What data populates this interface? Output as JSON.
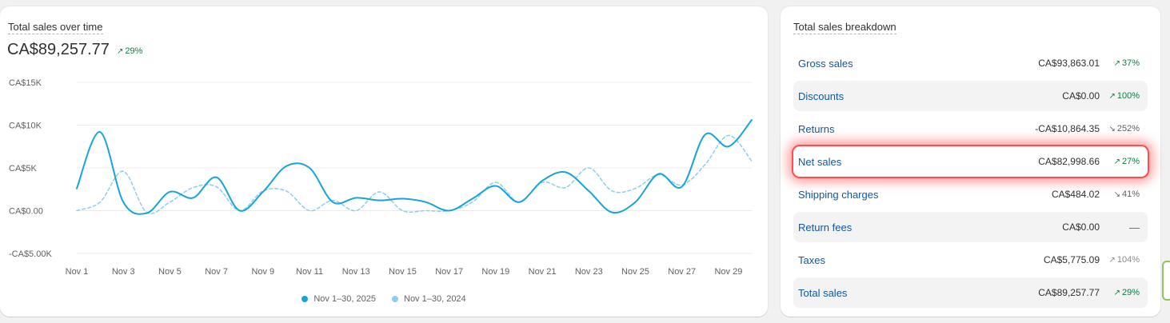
{
  "sales_over_time": {
    "title": "Total sales over time",
    "total_value": "CA$89,257.77",
    "total_delta": "29%",
    "legend": [
      {
        "label": "Nov 1–30, 2025",
        "color": "#18a3d9"
      },
      {
        "label": "Nov 1–30, 2024",
        "color": "#8fcdee"
      }
    ],
    "chart_data": {
      "type": "line",
      "x": [
        "Nov 1",
        "Nov 2",
        "Nov 3",
        "Nov 4",
        "Nov 5",
        "Nov 6",
        "Nov 7",
        "Nov 8",
        "Nov 9",
        "Nov 10",
        "Nov 11",
        "Nov 12",
        "Nov 13",
        "Nov 14",
        "Nov 15",
        "Nov 16",
        "Nov 17",
        "Nov 18",
        "Nov 19",
        "Nov 20",
        "Nov 21",
        "Nov 22",
        "Nov 23",
        "Nov 24",
        "Nov 25",
        "Nov 26",
        "Nov 27",
        "Nov 28",
        "Nov 29",
        "Nov 30"
      ],
      "tick_labels": [
        "Nov 1",
        "Nov 3",
        "Nov 5",
        "Nov 7",
        "Nov 9",
        "Nov 11",
        "Nov 13",
        "Nov 15",
        "Nov 17",
        "Nov 19",
        "Nov 21",
        "Nov 23",
        "Nov 25",
        "Nov 27",
        "Nov 29"
      ],
      "y_ticks": [
        "CA$15K",
        "CA$10K",
        "CA$5K",
        "CA$0.00",
        "-CA$5.00K"
      ],
      "ylim": [
        -5000,
        15000
      ],
      "series": [
        {
          "name": "Nov 1–30, 2025",
          "style": "solid",
          "color": "#18a3d9",
          "values": [
            2600,
            9200,
            1000,
            -300,
            2200,
            1500,
            3900,
            0,
            2200,
            5200,
            5000,
            1000,
            1500,
            1200,
            1400,
            1000,
            0,
            1400,
            2900,
            1000,
            3500,
            4500,
            2300,
            -200,
            1000,
            4300,
            2800,
            8900,
            7500,
            10600
          ]
        },
        {
          "name": "Nov 1–30, 2024",
          "style": "dashed",
          "color": "#8fcdee",
          "values": [
            0,
            1000,
            4600,
            -200,
            1000,
            2700,
            2800,
            0,
            2300,
            2300,
            0,
            1200,
            0,
            2200,
            0,
            0,
            0,
            1000,
            3300,
            1000,
            3300,
            2700,
            5000,
            2300,
            2600,
            4200,
            3000,
            5400,
            8800,
            5800
          ]
        }
      ]
    }
  },
  "breakdown": {
    "title": "Total sales breakdown",
    "rows": [
      {
        "label": "Gross sales",
        "value": "CA$93,863.01",
        "delta": "37%",
        "direction": "up",
        "delta_color": "#0c7d3f"
      },
      {
        "label": "Discounts",
        "value": "CA$0.00",
        "delta": "100%",
        "direction": "up",
        "delta_color": "#0c7d3f"
      },
      {
        "label": "Returns",
        "value": "-CA$10,864.35",
        "delta": "252%",
        "direction": "down",
        "delta_color": "#616161"
      },
      {
        "label": "Net sales",
        "value": "CA$82,998.66",
        "delta": "27%",
        "direction": "up",
        "delta_color": "#0c7d3f"
      },
      {
        "label": "Shipping charges",
        "value": "CA$484.02",
        "delta": "41%",
        "direction": "down",
        "delta_color": "#616161"
      },
      {
        "label": "Return fees",
        "value": "CA$0.00",
        "delta": "—",
        "direction": "none",
        "delta_color": "#616161"
      },
      {
        "label": "Taxes",
        "value": "CA$5,775.09",
        "delta": "104%",
        "direction": "up-muted",
        "delta_color": "#8a8a8a"
      },
      {
        "label": "Total sales",
        "value": "CA$89,257.77",
        "delta": "29%",
        "direction": "up",
        "delta_color": "#0c7d3f"
      }
    ]
  },
  "colors": {
    "link": "#1058a7",
    "positive": "#0c7d3f",
    "highlight": "#ff4d4d"
  }
}
